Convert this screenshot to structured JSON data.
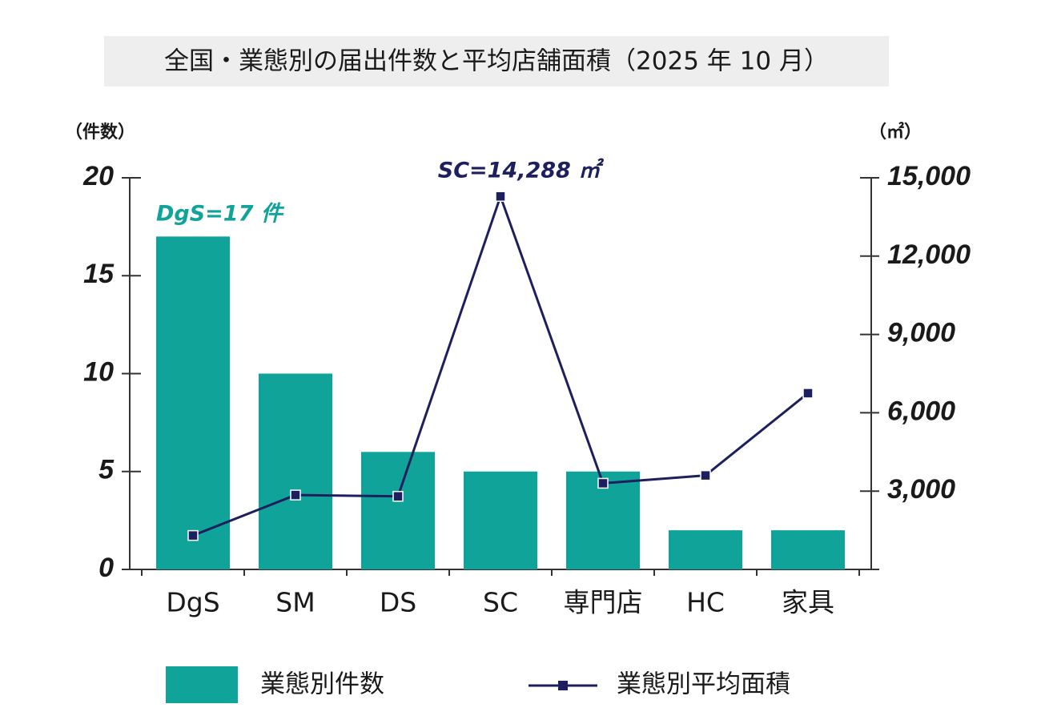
{
  "chart_data": {
    "type": "combo",
    "title": "全国・業態別の届出件数と平均店舗面積（2025 年 10 月）",
    "y_label": "（件数）",
    "y2_label": "（㎡）",
    "annotations": [
      "DgS=17 件",
      "SC=14,288 ㎡"
    ],
    "categories": [
      "DgS",
      "SM",
      "DS",
      "SC",
      "専門店",
      "HC",
      "家具"
    ],
    "series": [
      {
        "name": "業態別件数",
        "type": "bar",
        "color": "#0fa39a",
        "values": [
          17,
          10,
          6,
          5,
          5,
          2,
          2
        ]
      },
      {
        "name": "業態別平均面積",
        "type": "line",
        "axis": "y2",
        "color": "#1d1f5e",
        "values": [
          1300,
          2850,
          2800,
          14288,
          3300,
          3600,
          6750
        ]
      }
    ],
    "ylim": [
      0,
      20
    ],
    "yticks": [
      0,
      5,
      10,
      15,
      20
    ],
    "y2lim": [
      0,
      15000
    ],
    "y2ticks": [
      0,
      {
        "value": 3000,
        "label": "3,000"
      },
      {
        "value": 6000,
        "label": "6,000"
      },
      {
        "value": 9000,
        "label": "9,000"
      },
      {
        "value": 12000,
        "label": "12,000"
      },
      {
        "value": 15000,
        "label": "15,000"
      }
    ],
    "legend": "bottom",
    "grid": false
  }
}
